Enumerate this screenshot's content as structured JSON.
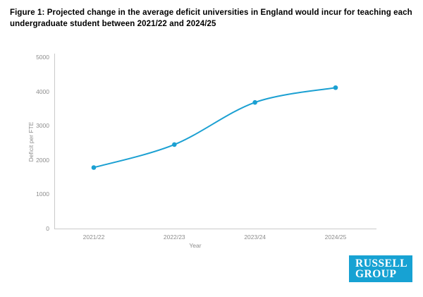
{
  "figure": {
    "title": "Figure 1: Projected change in the average deficit universities in England would incur for teaching each undergraduate student between 2021/22 and 2024/25"
  },
  "chart_data": {
    "type": "line",
    "x": [
      "2021/22",
      "2022/23",
      "2023/24",
      "2024/25"
    ],
    "series": [
      {
        "name": "Deficit per FTE",
        "values": [
          1780,
          2450,
          3680,
          4110
        ]
      }
    ],
    "title": "",
    "xlabel": "Year",
    "ylabel": "Deficit per FTE",
    "ylim": [
      0,
      5000
    ],
    "yticks": [
      0,
      1000,
      2000,
      3000,
      4000,
      5000
    ],
    "ytick_labels": [
      "0",
      "1000",
      "2000",
      "3000",
      "4000",
      "5000"
    ],
    "grid": false,
    "legend_position": "none",
    "line_color": "#1ba0d2",
    "marker": "circle"
  },
  "logo": {
    "line1": "RUSSELL",
    "line2": "GROUP",
    "bg_color": "#17a2d3",
    "text_color": "#ffffff"
  }
}
